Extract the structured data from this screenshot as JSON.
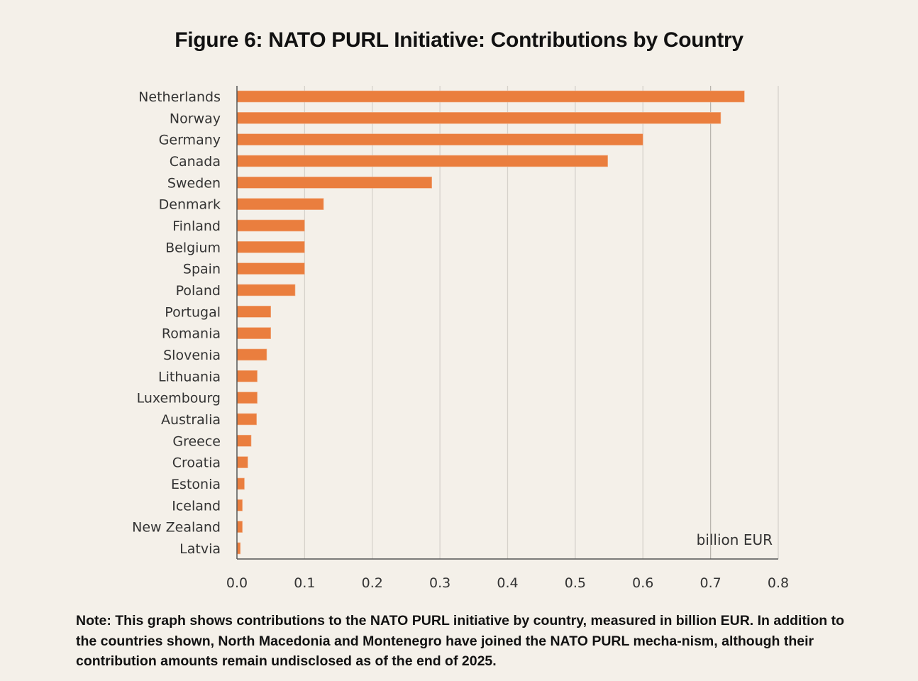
{
  "title": "Figure 6: NATO PURL Initiative: Contributions by Country",
  "note": "Note: This graph shows contributions to the NATO PURL initiative by country, measured in billion EUR. In addition to the countries shown, North Macedonia and Montenegro have joined the NATO PURL mecha-nism, although their contribution amounts remain undisclosed as of the end of 2025.",
  "chart_data": {
    "type": "bar",
    "orientation": "horizontal",
    "title": "Figure 6: NATO PURL Initiative: Contributions by Country",
    "xlabel": "billion EUR",
    "ylabel": "",
    "xlim": [
      0,
      0.8
    ],
    "xticks": [
      "0.0",
      "0.1",
      "0.2",
      "0.3",
      "0.4",
      "0.5",
      "0.6",
      "0.7",
      "0.8"
    ],
    "grid": "vertical",
    "bar_color": "#ea7e3e",
    "categories": [
      "Netherlands",
      "Norway",
      "Germany",
      "Canada",
      "Sweden",
      "Denmark",
      "Finland",
      "Belgium",
      "Spain",
      "Poland",
      "Portugal",
      "Romania",
      "Slovenia",
      "Lithuania",
      "Luxembourg",
      "Australia",
      "Greece",
      "Croatia",
      "Estonia",
      "Iceland",
      "New Zealand",
      "Latvia"
    ],
    "values": [
      0.75,
      0.715,
      0.6,
      0.548,
      0.288,
      0.128,
      0.1,
      0.1,
      0.1,
      0.086,
      0.05,
      0.05,
      0.044,
      0.03,
      0.03,
      0.029,
      0.021,
      0.016,
      0.011,
      0.008,
      0.008,
      0.005
    ]
  }
}
